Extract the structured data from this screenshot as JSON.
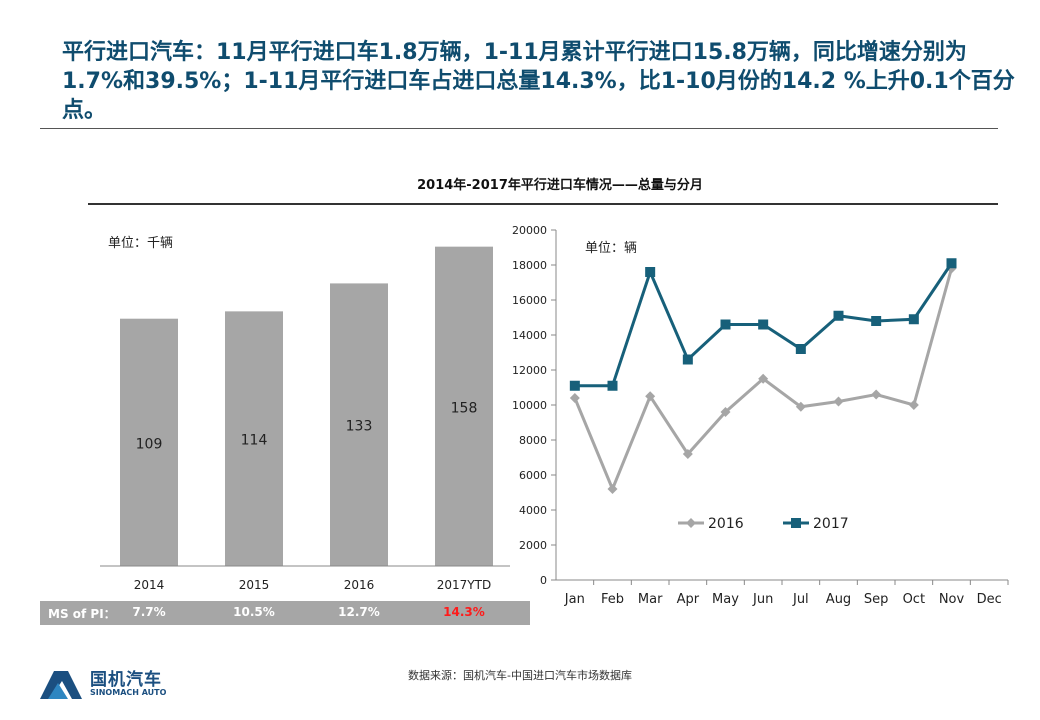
{
  "headline": "平行进口汽车：11月平行进口车1.8万辆，1-11月累计平行进口15.8万辆，同比增速分别为1.7%和39.5%；1-11月平行进口车占进口总量14.3%，比1-10月份的14.2 %上升0.1个百分点。",
  "chart_title": "2014年-2017年平行进口车情况——总量与分月",
  "ms": {
    "label": "MS of PI：",
    "values": [
      "7.7%",
      "10.5%",
      "12.7%",
      "14.3%"
    ]
  },
  "source": "数据来源：国机汽车-中国进口汽车市场数据库",
  "logo": {
    "name": "国机汽车",
    "subname": "SINOMACH AUTO"
  },
  "colors": {
    "headline": "#0f4c6e",
    "bar": "#a6a6a6",
    "s2016": "#a6a6a6",
    "s2017": "#17607a",
    "ms_highlight": "#ff1a1a"
  },
  "chart_data": [
    {
      "type": "bar",
      "unit_label": "单位：千辆",
      "categories": [
        "2014",
        "2015",
        "2016",
        "2017YTD"
      ],
      "values": [
        109,
        114,
        133,
        158
      ],
      "ylim": [
        0,
        170
      ]
    },
    {
      "type": "line",
      "unit_label": "单位：辆",
      "categories": [
        "Jan",
        "Feb",
        "Mar",
        "Apr",
        "May",
        "Jun",
        "Jul",
        "Aug",
        "Sep",
        "Oct",
        "Nov",
        "Dec"
      ],
      "yticks": [
        "0",
        "2000",
        "4000",
        "6000",
        "8000",
        "10000",
        "12000",
        "14000",
        "16000",
        "18000",
        "20000"
      ],
      "ylim": [
        0,
        20000
      ],
      "legend_position": "bottom-center",
      "series": [
        {
          "name": "2016",
          "values": [
            10400,
            5200,
            10500,
            7200,
            9600,
            11500,
            9900,
            10200,
            10600,
            10000,
            17800,
            null
          ]
        },
        {
          "name": "2017",
          "values": [
            11100,
            11100,
            17600,
            12600,
            14600,
            14600,
            13200,
            15100,
            14800,
            14900,
            18100,
            null
          ]
        }
      ]
    }
  ]
}
